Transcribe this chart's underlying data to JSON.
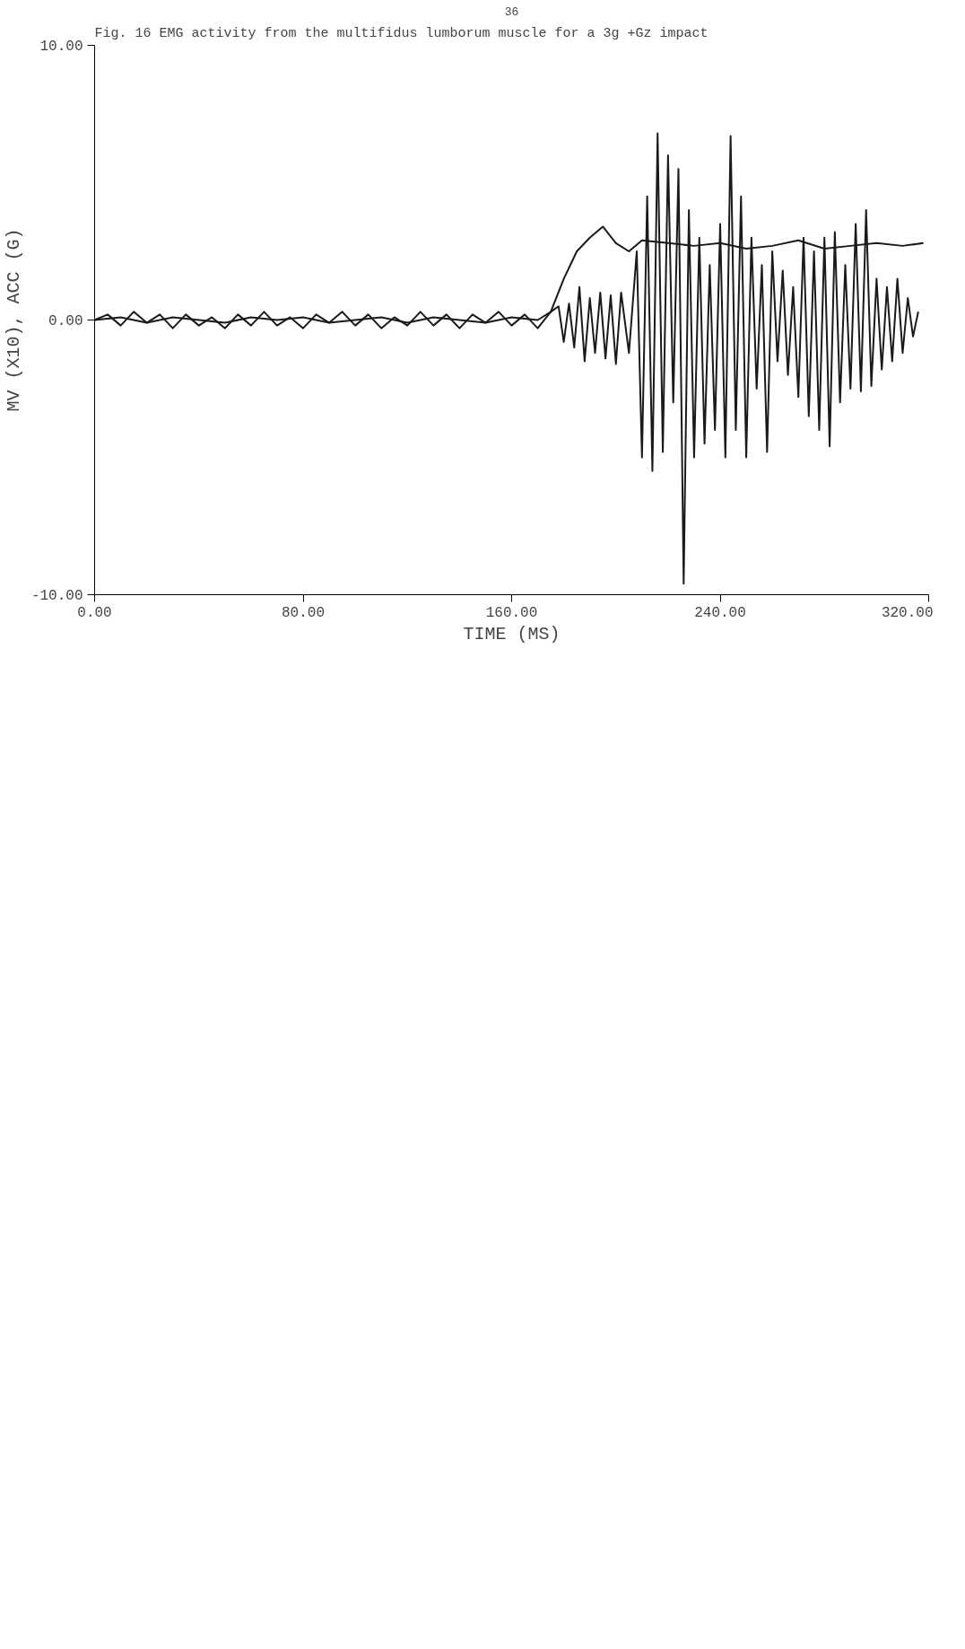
{
  "chart_data": {
    "type": "line",
    "title": "Fig. 16  EMG activity from the multifidus lumborum muscle for a 3g +Gz impact",
    "xlabel": "TIME (MS)",
    "ylabel": "MV (X10), ACC (G)",
    "annotations": [
      "36"
    ],
    "xlim": [
      0,
      320
    ],
    "ylim": [
      -10,
      10
    ],
    "xticks": [
      {
        "value": 0,
        "label": "0.00"
      },
      {
        "value": 80,
        "label": "80.00"
      },
      {
        "value": 160,
        "label": "160.00"
      },
      {
        "value": 240,
        "label": "240.00"
      },
      {
        "value": 320,
        "label": "320.00"
      }
    ],
    "yticks": [
      {
        "value": -10,
        "label": "-10.00"
      },
      {
        "value": 0,
        "label": "0.00"
      },
      {
        "value": 10,
        "label": "10.00"
      }
    ],
    "grid": false,
    "marker": "none",
    "line_style": "solid",
    "series": [
      {
        "color": "#1a1a1a",
        "x": [
          0,
          5,
          10,
          15,
          20,
          25,
          30,
          35,
          40,
          45,
          50,
          55,
          60,
          65,
          70,
          75,
          80,
          85,
          90,
          95,
          100,
          105,
          110,
          115,
          120,
          125,
          130,
          135,
          140,
          145,
          150,
          155,
          160,
          165,
          170,
          175,
          178,
          180,
          182,
          184,
          186,
          188,
          190,
          192,
          194,
          196,
          198,
          200,
          202,
          205,
          208,
          210,
          212,
          214,
          216,
          218,
          220,
          222,
          224,
          226,
          228,
          230,
          232,
          234,
          236,
          238,
          240,
          242,
          244,
          246,
          248,
          250,
          252,
          254,
          256,
          258,
          260,
          262,
          264,
          266,
          268,
          270,
          272,
          274,
          276,
          278,
          280,
          282,
          284,
          286,
          288,
          290,
          292,
          294,
          296,
          298,
          300,
          302,
          304,
          306,
          308,
          310,
          312,
          314,
          316
        ],
        "values": [
          0,
          0.2,
          -0.2,
          0.3,
          -0.1,
          0.2,
          -0.3,
          0.2,
          -0.2,
          0.1,
          -0.3,
          0.2,
          -0.2,
          0.3,
          -0.2,
          0.1,
          -0.3,
          0.2,
          -0.1,
          0.3,
          -0.2,
          0.2,
          -0.3,
          0.1,
          -0.2,
          0.3,
          -0.2,
          0.2,
          -0.3,
          0.2,
          -0.1,
          0.3,
          -0.2,
          0.2,
          -0.3,
          0.3,
          0.5,
          -0.8,
          0.6,
          -1.0,
          1.2,
          -1.5,
          0.8,
          -1.2,
          1.0,
          -1.4,
          0.9,
          -1.6,
          1.0,
          -1.2,
          2.5,
          -5.0,
          4.5,
          -5.5,
          6.8,
          -4.8,
          6.0,
          -3.0,
          5.5,
          -9.6,
          4.0,
          -5.0,
          3.0,
          -4.5,
          2.0,
          -4.0,
          3.5,
          -5.0,
          6.7,
          -4.0,
          4.5,
          -5.0,
          3.0,
          -2.5,
          2.0,
          -4.8,
          2.5,
          -1.5,
          1.8,
          -2.0,
          1.2,
          -2.8,
          3.0,
          -3.5,
          2.5,
          -4.0,
          3.0,
          -4.6,
          3.2,
          -3.0,
          2.0,
          -2.5,
          3.5,
          -2.6,
          4.0,
          -2.4,
          1.5,
          -1.8,
          1.2,
          -1.5,
          1.5,
          -1.2,
          0.8,
          -0.6,
          0.3
        ]
      },
      {
        "color": "#1a1a1a",
        "x": [
          0,
          10,
          20,
          30,
          40,
          50,
          60,
          70,
          80,
          90,
          100,
          110,
          120,
          130,
          140,
          150,
          160,
          170,
          175,
          180,
          185,
          190,
          195,
          200,
          205,
          210,
          220,
          230,
          240,
          250,
          260,
          270,
          280,
          290,
          300,
          310,
          318
        ],
        "values": [
          0,
          0.1,
          -0.1,
          0.1,
          0,
          -0.1,
          0.1,
          0,
          0.1,
          -0.1,
          0,
          0.1,
          -0.1,
          0.1,
          0,
          -0.1,
          0.1,
          0,
          0.3,
          1.5,
          2.5,
          3.0,
          3.4,
          2.8,
          2.5,
          2.9,
          2.8,
          2.7,
          2.8,
          2.6,
          2.7,
          2.9,
          2.6,
          2.7,
          2.8,
          2.7,
          2.8
        ]
      }
    ]
  }
}
